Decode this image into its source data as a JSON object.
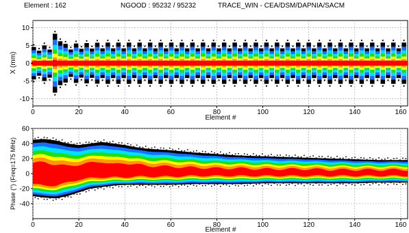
{
  "header": {
    "element_text": "Element : 162",
    "ngood_text": "NGOOD : 95232 / 95232",
    "source_text": "TRACE_WIN - CEA/DSM/DAPNIA/SACM"
  },
  "colors": {
    "outer": "#000000",
    "blue": "#1f6cff",
    "cyan": "#00e0ff",
    "green": "#19e019",
    "yellow": "#ffff00",
    "orange": "#ff9900",
    "red": "#ff0000",
    "grid": "#9a9a9a"
  },
  "chart_data": [
    {
      "type": "area",
      "xlabel": "Element #",
      "ylabel": "X (mm)",
      "xlim": [
        0,
        163
      ],
      "ylim": [
        -12,
        12
      ],
      "xticks": [
        0,
        20,
        40,
        60,
        80,
        100,
        120,
        140,
        160
      ],
      "yticks": [
        -10,
        -5,
        0,
        5,
        10
      ],
      "grid": true,
      "x": [
        0,
        2,
        4,
        6,
        8,
        9,
        10,
        11,
        12,
        13,
        14,
        15,
        16,
        18,
        20,
        25,
        30,
        40,
        50,
        60,
        70,
        80,
        90,
        100,
        110,
        120,
        130,
        140,
        150,
        160,
        163
      ],
      "envelope_max": [
        4.5,
        4.8,
        5.0,
        5.0,
        5.5,
        7.5,
        8.8,
        9.2,
        8.5,
        6.5,
        5.5,
        5.2,
        5.3,
        5.5,
        5.6,
        5.7,
        5.8,
        5.8,
        5.8,
        5.8,
        5.8,
        5.8,
        5.8,
        5.8,
        5.8,
        5.8,
        5.8,
        5.8,
        5.8,
        5.8,
        5.8
      ],
      "envelope_min": [
        -4.5,
        -4.8,
        -5.0,
        -5.0,
        -6.0,
        -7.5,
        -8.8,
        -9.2,
        -8.5,
        -6.5,
        -5.5,
        -5.2,
        -5.3,
        -5.5,
        -5.6,
        -5.7,
        -5.8,
        -5.8,
        -5.8,
        -5.8,
        -5.8,
        -5.8,
        -5.8,
        -5.8,
        -5.8,
        -5.8,
        -5.8,
        -5.8,
        -5.8,
        -5.8,
        -5.8
      ],
      "lattice_period": 2.3
    },
    {
      "type": "area",
      "xlabel": "Element #",
      "ylabel": "Phase (°)  (Freq=175 MHz)",
      "xlim": [
        0,
        163
      ],
      "ylim": [
        -60,
        60
      ],
      "xticks": [
        0,
        20,
        40,
        60,
        80,
        100,
        120,
        140,
        160
      ],
      "yticks": [
        -40,
        -20,
        0,
        20,
        40,
        60
      ],
      "grid": true,
      "x": [
        0,
        5,
        10,
        15,
        20,
        25,
        30,
        35,
        40,
        45,
        50,
        55,
        60,
        70,
        80,
        90,
        100,
        110,
        120,
        130,
        140,
        150,
        160,
        163
      ],
      "envelope_max": [
        45,
        46,
        44,
        40,
        38,
        40,
        42,
        40,
        38,
        35,
        33,
        32,
        31,
        28,
        26,
        24,
        23,
        22,
        21,
        20,
        19,
        18,
        18,
        18
      ],
      "envelope_min": [
        -30,
        -32,
        -33,
        -30,
        -25,
        -20,
        -18,
        -16,
        -15,
        -15,
        -15,
        -15,
        -15,
        -14,
        -14,
        -14,
        -13,
        -13,
        -13,
        -13,
        -13,
        -12,
        -12,
        -12
      ],
      "core_max": [
        14,
        15,
        12,
        10,
        12,
        14,
        16,
        12,
        14,
        12,
        10,
        10,
        9,
        8,
        7,
        7,
        6,
        6,
        6,
        5,
        5,
        5,
        5,
        5
      ],
      "core_min": [
        -14,
        -16,
        -16,
        -12,
        -8,
        -6,
        -5,
        -5,
        -5,
        -4,
        -4,
        -4,
        -4,
        -3,
        -3,
        -3,
        -3,
        -3,
        -3,
        -3,
        -3,
        -3,
        -3,
        -3
      ],
      "oscillation_period": 11
    }
  ]
}
